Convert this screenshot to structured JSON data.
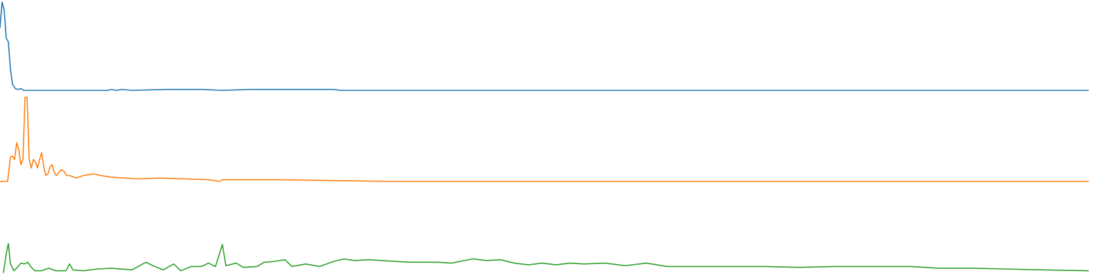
{
  "chart_data": [
    {
      "type": "line",
      "color": "#1f77b4",
      "xlim": [
        0,
        1566
      ],
      "ylim": [
        0,
        100
      ],
      "x": [
        0,
        3,
        6,
        9,
        12,
        15,
        18,
        22,
        26,
        30,
        34,
        60,
        155,
        160,
        168,
        175,
        190,
        240,
        265,
        290,
        320,
        360,
        480,
        490,
        1566
      ],
      "values": [
        71,
        100,
        91,
        59,
        55,
        24,
        7,
        2,
        1,
        2,
        0,
        0,
        0,
        1,
        0,
        1,
        0,
        1,
        1,
        1,
        0,
        1,
        1,
        0,
        0
      ]
    },
    {
      "type": "line",
      "color": "#ff7f0e",
      "xlim": [
        0,
        1566
      ],
      "ylim": [
        0,
        100
      ],
      "x": [
        0,
        11,
        15,
        18,
        21,
        24,
        27,
        30,
        33,
        36,
        39,
        42,
        45,
        48,
        51,
        54,
        57,
        60,
        63,
        66,
        69,
        72,
        75,
        78,
        81,
        84,
        88,
        92,
        96,
        100,
        110,
        120,
        135,
        145,
        160,
        200,
        230,
        300,
        316,
        320,
        400,
        480,
        560,
        1566
      ],
      "values": [
        0,
        0,
        29,
        30,
        26,
        46,
        38,
        20,
        26,
        100,
        100,
        26,
        16,
        26,
        23,
        16,
        26,
        34,
        17,
        7,
        9,
        17,
        20,
        11,
        7,
        10,
        14,
        12,
        7,
        7,
        4,
        7,
        9,
        7,
        5,
        3,
        4,
        2,
        0,
        2,
        2,
        1,
        0,
        0
      ]
    },
    {
      "type": "line",
      "color": "#2ca02c",
      "xlim": [
        0,
        1566
      ],
      "ylim": [
        0,
        100
      ],
      "x": [
        5,
        9,
        12,
        15,
        20,
        25,
        30,
        35,
        40,
        45,
        50,
        60,
        70,
        80,
        95,
        100,
        105,
        120,
        140,
        160,
        190,
        210,
        220,
        235,
        250,
        260,
        275,
        290,
        300,
        310,
        320,
        325,
        340,
        350,
        370,
        380,
        395,
        410,
        420,
        440,
        460,
        480,
        495,
        510,
        530,
        550,
        570,
        590,
        610,
        630,
        650,
        680,
        700,
        720,
        740,
        760,
        780,
        800,
        820,
        840,
        870,
        900,
        930,
        960,
        1000,
        1050,
        1100,
        1150,
        1200,
        1250,
        1310,
        1350,
        1400,
        1450,
        1500,
        1566
      ],
      "values": [
        0,
        22,
        34,
        10,
        2,
        6,
        11,
        10,
        12,
        6,
        2,
        2,
        5,
        2,
        2,
        10,
        3,
        2,
        4,
        5,
        3,
        12,
        8,
        3,
        10,
        2,
        7,
        7,
        11,
        7,
        33,
        8,
        11,
        6,
        7,
        12,
        13,
        15,
        7,
        10,
        7,
        13,
        16,
        14,
        15,
        14,
        13,
        12,
        12,
        12,
        11,
        16,
        14,
        15,
        11,
        9,
        11,
        9,
        11,
        10,
        11,
        8,
        11,
        7,
        7,
        7,
        7,
        6,
        7,
        7,
        7,
        5,
        5,
        4,
        3,
        2
      ]
    }
  ]
}
